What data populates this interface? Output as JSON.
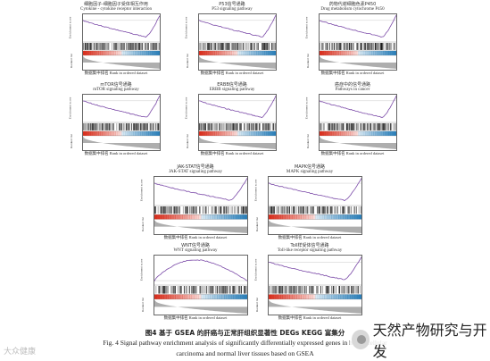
{
  "labels": {
    "enrichment_score": "Enrichment score",
    "enrichment_score_cn": "富集得分",
    "ranked_list": "Ranked list",
    "ranked_list_cn": "排序列表",
    "x_axis": "数据集中排名 Rank in ordered dataset"
  },
  "panels": [
    {
      "cn": "细胞因子-细胞因子受体相互作用",
      "en": "Cytokine - cytokine receptor interaction",
      "shape": "u"
    },
    {
      "cn": "P53信号通路",
      "en": "P53 signaling pathway",
      "shape": "u"
    },
    {
      "cn": "药物代谢细胞色素P450",
      "en": "Drug metabolism cytochrome P450",
      "shape": "u"
    },
    {
      "cn": "mTOR信号通路",
      "en": "mTOR signaling pathway",
      "shape": "u"
    },
    {
      "cn": "ERBB信号通路",
      "en": "ERBB signaling pathway",
      "shape": "u"
    },
    {
      "cn": "癌症中的信号通路",
      "en": "Pathways in cancer",
      "shape": "u"
    },
    {
      "cn": "JAK-STAT信号通路",
      "en": "JAK-STAT signaling pathway",
      "shape": "u"
    },
    {
      "cn": "MAPK信号通路",
      "en": "MAPK signaling pathway",
      "shape": "u"
    },
    {
      "cn": "WNT信号通路",
      "en": "WNT signaling pathway",
      "shape": "hill"
    },
    {
      "cn": "Toll样受体信号通路",
      "en": "Toll-like receptor signaling pathway",
      "shape": "u"
    }
  ],
  "caption": {
    "cn": "图4 基于 GSEA 的肝癌与正常肝组织显著性 DEGs KEGG 富集分",
    "en_line1": "Fig. 4 Signal pathway enrichment analysis of significantly differentially expressed genes in hepatocellular",
    "en_line2": "carcinoma and normal liver tissues based on GSEA"
  },
  "watermark": {
    "left": "大众健康",
    "right": "天然产物研究与开发"
  },
  "colors": {
    "curve": "#7b4aa8",
    "red": "#d7301f",
    "blue": "#2c7fb8"
  }
}
